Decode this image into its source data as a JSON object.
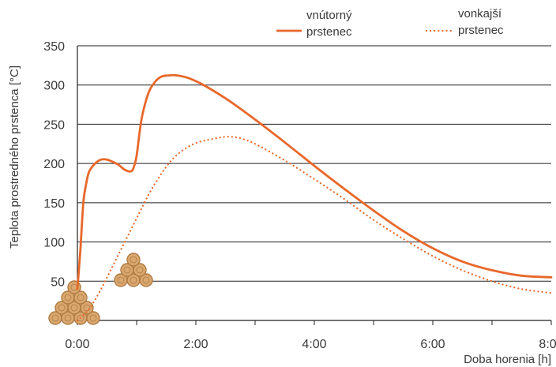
{
  "colors": {
    "series": "#e8682a",
    "grid": "#222222",
    "axis": "#222222",
    "text": "#3a3a3a",
    "wood": "#d9a870",
    "wood_ring": "#b07a40"
  },
  "chart_data": {
    "type": "line",
    "title": "",
    "xlabel": "Doba horenia [h]",
    "ylabel": "Teplota prostredného prstenca [°C]",
    "xlim": [
      0,
      8
    ],
    "ylim": [
      0,
      350
    ],
    "x_ticks": [
      0,
      2,
      4,
      6,
      8
    ],
    "x_tick_labels": [
      "0:00",
      "2:00",
      "4:00",
      "6:00",
      "8:00"
    ],
    "y_ticks": [
      50,
      100,
      150,
      200,
      250,
      300,
      350
    ],
    "y_tick_labels": [
      "50",
      "100",
      "150",
      "200",
      "250",
      "300",
      "350"
    ],
    "grid": "horizontal",
    "legend_position": "top",
    "series": [
      {
        "name": "vnútorný prstenec",
        "label_lines": [
          "vnútorný",
          "prstenec"
        ],
        "style": "solid",
        "x": [
          0.0,
          0.05,
          0.1,
          0.15,
          0.2,
          0.3,
          0.4,
          0.5,
          0.6,
          0.7,
          0.8,
          0.9,
          0.95,
          1.0,
          1.05,
          1.1,
          1.2,
          1.3,
          1.4,
          1.5,
          1.7,
          2.0,
          2.5,
          3.0,
          3.5,
          4.0,
          4.5,
          5.0,
          5.5,
          6.0,
          6.5,
          7.0,
          7.5,
          8.0
        ],
        "y": [
          40,
          90,
          150,
          175,
          190,
          200,
          205,
          205,
          202,
          198,
          192,
          190,
          195,
          210,
          240,
          263,
          290,
          303,
          310,
          312,
          312,
          305,
          283,
          256,
          227,
          197,
          168,
          140,
          114,
          92,
          75,
          64,
          57,
          55
        ]
      },
      {
        "name": "vonkajší prstenec",
        "label_lines": [
          "vonkajší",
          "prstenec"
        ],
        "style": "dotted",
        "x": [
          0.0,
          0.2,
          0.4,
          0.6,
          0.8,
          1.0,
          1.2,
          1.4,
          1.6,
          1.8,
          2.0,
          2.2,
          2.4,
          2.5,
          2.6,
          2.7,
          2.8,
          3.0,
          3.5,
          4.0,
          4.5,
          5.0,
          5.5,
          6.0,
          6.5,
          7.0,
          7.5,
          8.0
        ],
        "y": [
          0,
          15,
          40,
          70,
          100,
          130,
          160,
          185,
          205,
          218,
          226,
          230,
          233,
          234,
          234,
          233,
          231,
          225,
          204,
          180,
          155,
          128,
          104,
          82,
          64,
          50,
          40,
          35
        ]
      }
    ]
  }
}
